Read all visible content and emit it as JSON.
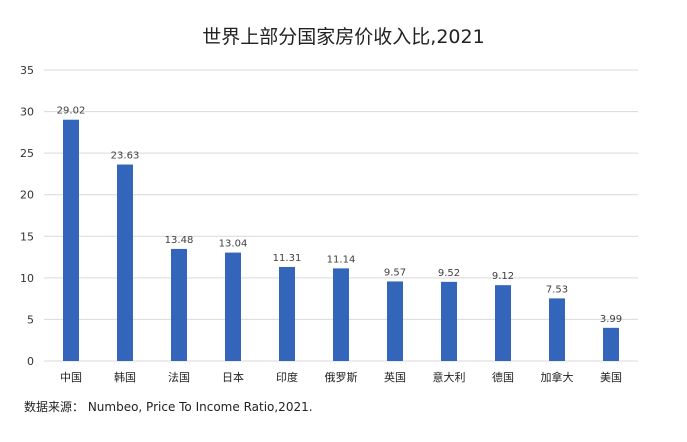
{
  "chart_data": {
    "type": "bar",
    "title": "世界上部分国家房价收入比,2021",
    "categories": [
      "中国",
      "韩国",
      "法国",
      "日本",
      "印度",
      "俄罗斯",
      "英国",
      "意大利",
      "德国",
      "加拿大",
      "美国"
    ],
    "values": [
      29.02,
      23.63,
      13.48,
      13.04,
      11.31,
      11.14,
      9.57,
      9.52,
      9.12,
      7.53,
      3.99
    ],
    "value_labels": [
      "29.02",
      "23.63",
      "13.48",
      "13.04",
      "11.31",
      "11.14",
      "9.57",
      "9.52",
      "9.12",
      "7.53",
      "3.99"
    ],
    "ylim": [
      0,
      35
    ],
    "yticks": [
      0,
      5,
      10,
      15,
      20,
      25,
      30,
      35
    ],
    "ytick_labels": [
      "0",
      "5",
      "10",
      "15",
      "20",
      "25",
      "30",
      "35"
    ],
    "xlabel": "",
    "ylabel": "",
    "grid": true,
    "legend": "none",
    "bar_color": "#3366bb",
    "grid_color": "#d9d9d9",
    "source_note": "数据来源： Numbeo, Price To Income Ratio,2021."
  }
}
